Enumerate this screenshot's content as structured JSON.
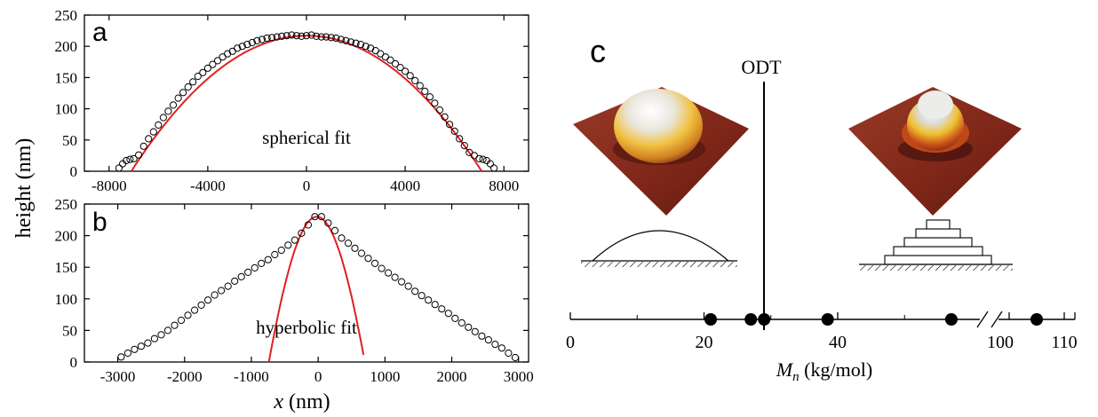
{
  "chart_data": [
    {
      "panel": "a",
      "type": "scatter",
      "annotation": "spherical fit",
      "xlabel": "x (nm)",
      "ylabel": "height (nm)",
      "xlim": [
        -9000,
        9000
      ],
      "ylim": [
        0,
        250
      ],
      "xticks": [
        "-8000",
        "-4000",
        "0",
        "4000",
        "8000"
      ],
      "xtick_values": [
        -8000,
        -4000,
        0,
        4000,
        8000
      ],
      "yticks": [
        "0",
        "50",
        "100",
        "150",
        "200",
        "250"
      ],
      "ytick_values": [
        0,
        50,
        100,
        150,
        200,
        250
      ],
      "fit": {
        "kind": "spherical",
        "peak": 217,
        "half_width": 7100
      },
      "series": [
        {
          "role": "data",
          "marker": "open-circle",
          "color": "#000000",
          "x": [
            -7600,
            -7450,
            -7300,
            -7150,
            -7000,
            -6800,
            -6600,
            -6400,
            -6200,
            -6000,
            -5800,
            -5600,
            -5400,
            -5200,
            -5000,
            -4800,
            -4600,
            -4400,
            -4200,
            -4000,
            -3800,
            -3600,
            -3400,
            -3200,
            -3000,
            -2800,
            -2600,
            -2400,
            -2200,
            -2000,
            -1800,
            -1600,
            -1400,
            -1200,
            -1000,
            -800,
            -600,
            -400,
            -200,
            0,
            200,
            400,
            600,
            800,
            1000,
            1200,
            1400,
            1600,
            1800,
            2000,
            2200,
            2400,
            2600,
            2800,
            3000,
            3200,
            3400,
            3600,
            3800,
            4000,
            4200,
            4400,
            4600,
            4800,
            5000,
            5200,
            5400,
            5600,
            5800,
            6000,
            6200,
            6400,
            6600,
            6800,
            7000,
            7150,
            7300,
            7450,
            7600
          ],
          "y": [
            5,
            12,
            17,
            19,
            20,
            26,
            40,
            52,
            63,
            74,
            86,
            96,
            106,
            117,
            126,
            135,
            143,
            152,
            158,
            165,
            171,
            177,
            183,
            188,
            192,
            197,
            200,
            203,
            206,
            209,
            211,
            213,
            214,
            215,
            216,
            217,
            218,
            217,
            216,
            217,
            218,
            216,
            215,
            215,
            214,
            213,
            211,
            209,
            207,
            205,
            203,
            200,
            197,
            193,
            188,
            183,
            178,
            172,
            166,
            160,
            153,
            145,
            137,
            128,
            119,
            109,
            98,
            87,
            75,
            64,
            52,
            41,
            30,
            25,
            20,
            19,
            17,
            12,
            5
          ]
        },
        {
          "role": "fit",
          "color": "#e02020"
        }
      ]
    },
    {
      "panel": "b",
      "type": "scatter",
      "annotation": "hyperbolic fit",
      "xlabel": "x (nm)",
      "ylabel": "height (nm)",
      "xlim": [
        -3500,
        3150
      ],
      "ylim": [
        0,
        250
      ],
      "xticks": [
        "-3000",
        "-2000",
        "-1000",
        "0",
        "1000",
        "2000",
        "3000"
      ],
      "xtick_values": [
        -3000,
        -2000,
        -1000,
        0,
        1000,
        2000,
        3000
      ],
      "yticks": [
        "0",
        "50",
        "100",
        "150",
        "200",
        "250"
      ],
      "ytick_values": [
        0,
        50,
        100,
        150,
        200,
        250
      ],
      "fit": {
        "kind": "hyperbolic",
        "h0": 1235,
        "a": 1005,
        "c": 230,
        "center": -20
      },
      "series": [
        {
          "role": "data",
          "marker": "open-circle",
          "color": "#000000",
          "x": [
            -2950,
            -2850,
            -2750,
            -2650,
            -2550,
            -2450,
            -2350,
            -2250,
            -2150,
            -2050,
            -1950,
            -1850,
            -1750,
            -1650,
            -1550,
            -1450,
            -1350,
            -1250,
            -1150,
            -1050,
            -950,
            -850,
            -750,
            -650,
            -550,
            -450,
            -350,
            -250,
            -150,
            -50,
            50,
            150,
            250,
            350,
            450,
            550,
            650,
            750,
            850,
            950,
            1050,
            1150,
            1250,
            1350,
            1450,
            1550,
            1650,
            1750,
            1850,
            1950,
            2050,
            2150,
            2250,
            2350,
            2450,
            2550,
            2650,
            2750,
            2850,
            2950
          ],
          "y": [
            8,
            14,
            20,
            25,
            30,
            37,
            43,
            50,
            58,
            66,
            74,
            82,
            90,
            98,
            106,
            113,
            120,
            128,
            135,
            142,
            149,
            156,
            162,
            170,
            177,
            185,
            193,
            204,
            217,
            230,
            230,
            220,
            208,
            196,
            188,
            180,
            172,
            164,
            156,
            148,
            141,
            134,
            127,
            120,
            112,
            105,
            98,
            91,
            84,
            77,
            69,
            62,
            55,
            48,
            41,
            35,
            28,
            22,
            14,
            7
          ]
        },
        {
          "role": "fit",
          "color": "#e02020"
        }
      ]
    },
    {
      "panel": "c",
      "type": "scatter",
      "title": "ODT",
      "xlabel": "M_n (kg/mol)",
      "xticks": [
        "0",
        "20",
        "40",
        "100",
        "110"
      ],
      "x_axis_break": true,
      "vertical_line_label": "ODT",
      "vertical_line_position": 26.5,
      "series": [
        {
          "role": "samples",
          "marker": "filled-circle",
          "color": "#000000",
          "x": [
            21,
            27,
            29,
            38.5,
            57,
            105
          ]
        }
      ]
    }
  ],
  "labels": {
    "panel_a": "a",
    "panel_b": "b",
    "panel_c": "c",
    "y_axis": "height (nm)",
    "x_axis_prefix": "x",
    "x_axis_units": " (nm)",
    "fit_a": "spherical fit",
    "fit_b": "hyperbolic fit",
    "odt": "ODT",
    "mn_symbol": "M",
    "mn_subscript": "n",
    "mn_units": " (kg/mol)",
    "mn_ticks": [
      "0",
      "20",
      "40",
      "100",
      "110"
    ]
  },
  "colors": {
    "fit_line": "#e02020",
    "surface_base": "#8a2c1e",
    "surface_shadow": "#5a1810",
    "cap_highlight": "#ffffff",
    "cap_gold": "#e8b020"
  }
}
